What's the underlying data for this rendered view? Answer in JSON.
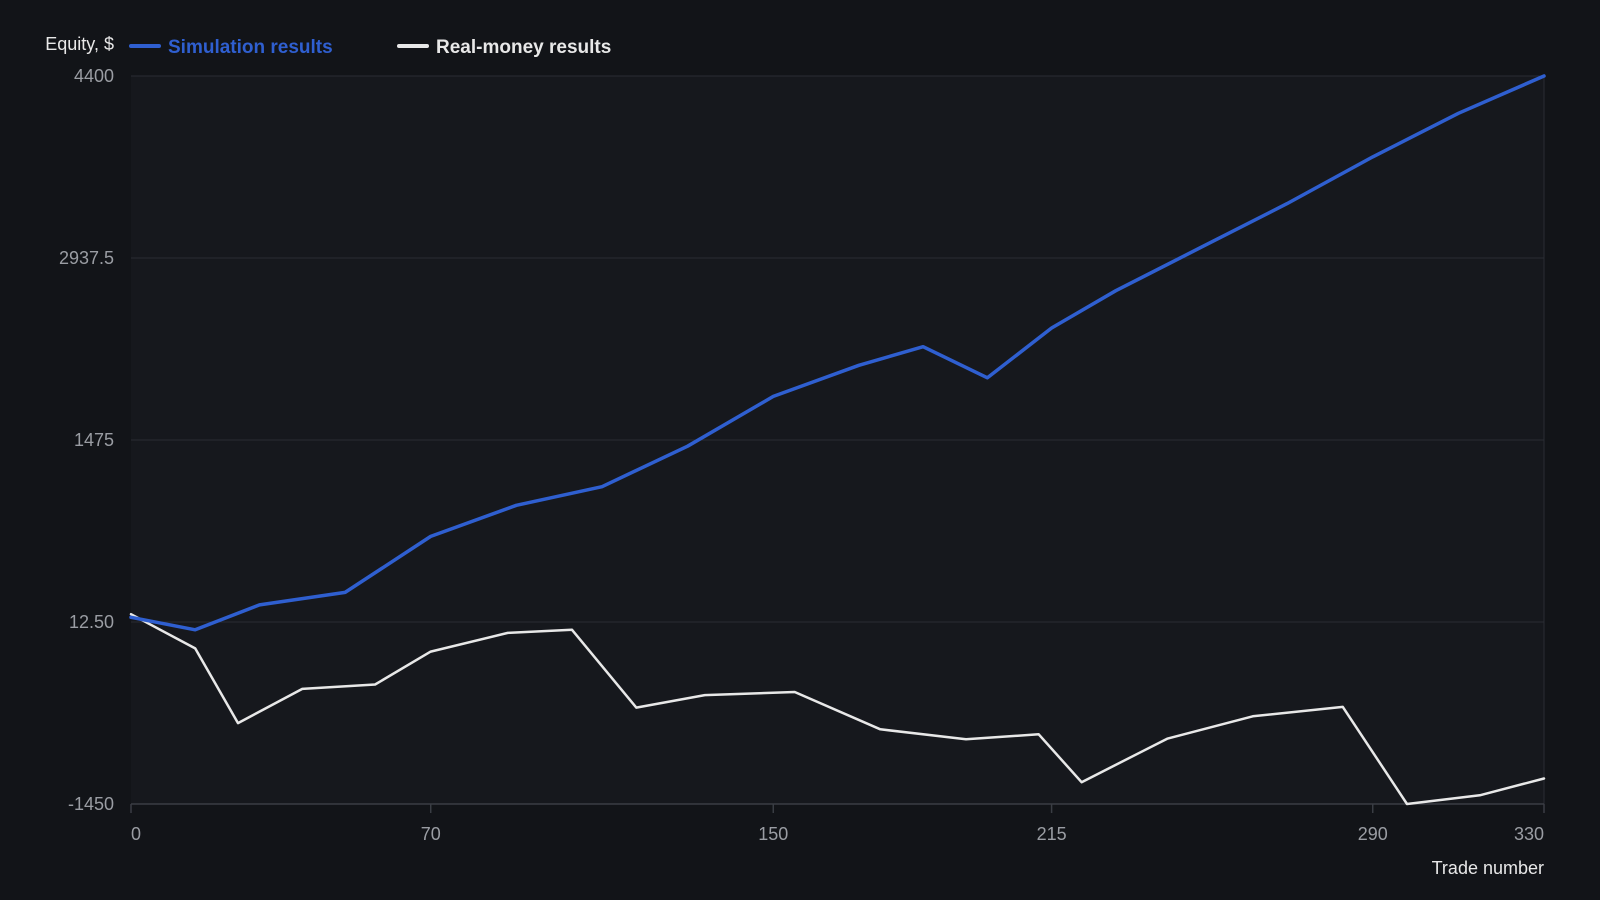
{
  "chart_data": {
    "type": "line",
    "title": "",
    "ylabel": "Equity, $",
    "xlabel": "Trade number",
    "xlim": [
      0,
      330
    ],
    "ylim": [
      -1450,
      4400
    ],
    "x_ticks": [
      0,
      70,
      150,
      215,
      290,
      330
    ],
    "x_tick_labels": [
      "0",
      "70",
      "150",
      "215",
      "290",
      "330"
    ],
    "y_ticks": [
      4400,
      2937.5,
      1475,
      12.5,
      -1450
    ],
    "y_tick_labels": [
      "4400",
      "2937.5",
      "1475",
      "12.50",
      "-1450"
    ],
    "grid": "horizontal",
    "legend_position": "top-left",
    "series": [
      {
        "name": "Simulation results",
        "color": "#2f5fd0",
        "x": [
          0,
          15,
          30,
          50,
          70,
          90,
          110,
          130,
          150,
          170,
          185,
          200,
          215,
          230,
          250,
          270,
          290,
          310,
          330
        ],
        "y": [
          50,
          -50,
          150,
          250,
          700,
          950,
          1100,
          1425,
          1825,
          2075,
          2225,
          1975,
          2375,
          2675,
          3025,
          3375,
          3750,
          4100,
          4400
        ]
      },
      {
        "name": "Real-money results",
        "color": "#e8e8e8",
        "x": [
          0,
          15,
          25,
          40,
          57,
          70,
          88,
          103,
          118,
          134,
          155,
          175,
          195,
          212,
          222,
          242,
          262,
          283,
          298,
          315,
          330
        ],
        "y": [
          75,
          -200,
          -800,
          -525,
          -490,
          -225,
          -75,
          -50,
          -675,
          -575,
          -550,
          -850,
          -930,
          -890,
          -1275,
          -925,
          -745,
          -670,
          -1450,
          -1380,
          -1245
        ]
      }
    ]
  }
}
